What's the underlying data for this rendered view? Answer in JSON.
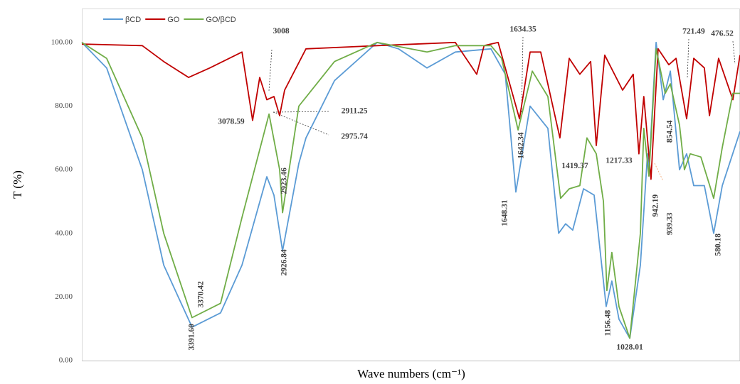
{
  "chart_data": {
    "type": "line",
    "x_label": "Wave numbers (cm⁻¹)",
    "y_label": "T (%)",
    "xlim": [
      4000,
      400
    ],
    "ylim": [
      0,
      110
    ],
    "yticks": [
      {
        "value": 0,
        "label": "0.00"
      },
      {
        "value": 20,
        "label": "20.00"
      },
      {
        "value": 40,
        "label": "40.00"
      },
      {
        "value": 60,
        "label": "60.00"
      },
      {
        "value": 80,
        "label": "80.00"
      },
      {
        "value": 100,
        "label": "100.00"
      }
    ],
    "legend": "top-left",
    "series": [
      {
        "name": "βCD",
        "color": "#5b9bd5",
        "x": [
          4000,
          3864,
          3669,
          3552,
          3397,
          3241,
          3124,
          2988,
          2949,
          2902,
          2813,
          2774,
          2618,
          2385,
          2268,
          2112,
          1957,
          1762,
          1684,
          1626,
          1548,
          1451,
          1392,
          1354,
          1315,
          1256,
          1198,
          1132,
          1101,
          1062,
          1003,
          945,
          906,
          898,
          859,
          820,
          781,
          731,
          692,
          653,
          595,
          544,
          497,
          400
        ],
        "values": [
          100,
          92,
          60,
          30,
          10.5,
          15,
          30,
          57.8,
          52,
          34.5,
          62,
          70,
          88,
          100,
          98,
          92,
          97,
          98,
          90,
          53,
          80,
          73,
          40,
          43,
          41,
          54,
          52,
          17,
          25,
          13,
          7,
          30,
          65,
          60,
          100,
          82,
          91,
          60,
          65,
          55,
          55,
          40,
          55,
          72
        ]
      },
      {
        "name": "GO",
        "color": "#c00000",
        "x": [
          4000,
          3669,
          3552,
          3416,
          3300,
          3124,
          3066,
          3027,
          2988,
          2949,
          2918,
          2891,
          2774,
          2385,
          1957,
          1840,
          1800,
          1723,
          1606,
          1548,
          1490,
          1385,
          1334,
          1276,
          1217,
          1186,
          1140,
          1042,
          984,
          953,
          926,
          887,
          848,
          789,
          750,
          692,
          653,
          595,
          567,
          517,
          439,
          400
        ],
        "values": [
          99.5,
          99,
          94,
          89,
          92,
          97,
          75.5,
          89,
          82,
          83,
          77,
          85,
          98,
          99,
          100,
          90,
          99,
          100,
          76,
          97,
          97,
          70,
          95,
          90,
          94,
          67.6,
          96,
          85,
          90,
          65,
          83,
          57,
          98,
          93,
          95,
          76,
          95,
          92,
          77,
          95,
          82,
          96
        ]
      },
      {
        "name": "GO/βCD",
        "color": "#70ad47",
        "x": [
          4000,
          3864,
          3669,
          3552,
          3397,
          3241,
          3124,
          2976,
          2918,
          2902,
          2813,
          2618,
          2385,
          2112,
          1957,
          1762,
          1704,
          1614,
          1536,
          1451,
          1381,
          1334,
          1276,
          1237,
          1186,
          1147,
          1128,
          1101,
          1062,
          1003,
          945,
          926,
          898,
          859,
          809,
          781,
          731,
          704,
          672,
          614,
          544,
          497,
          439,
          400
        ],
        "values": [
          100,
          95,
          70,
          40,
          13.5,
          18,
          45,
          77.5,
          60,
          46.5,
          80,
          94,
          100,
          97,
          99,
          99,
          95,
          72.5,
          91,
          83,
          51,
          54,
          55,
          70,
          65,
          50,
          22,
          34,
          17,
          7,
          40,
          73,
          58,
          98,
          84,
          87,
          74,
          60,
          65,
          64,
          51,
          67,
          84,
          84
        ]
      }
    ],
    "annotations": [
      {
        "text": "3008",
        "x": 2910,
        "y": 103.5,
        "vertical": false
      },
      {
        "text": "3078.59",
        "x": 3183,
        "y": 75,
        "vertical": false
      },
      {
        "text": "2911.25",
        "x": 2509,
        "y": 78.3,
        "vertical": false
      },
      {
        "text": "2975.74",
        "x": 2509,
        "y": 70.3,
        "vertical": false
      },
      {
        "text": "2923.46",
        "x": 2891,
        "y": 56.5,
        "vertical": true
      },
      {
        "text": "2926.84",
        "x": 2891,
        "y": 30.8,
        "vertical": true
      },
      {
        "text": "3370.42",
        "x": 3346,
        "y": 20.8,
        "vertical": true
      },
      {
        "text": "3391.60",
        "x": 3397,
        "y": 7.4,
        "vertical": true
      },
      {
        "text": "1634.35",
        "x": 1587,
        "y": 104,
        "vertical": false
      },
      {
        "text": "1642.34",
        "x": 1595,
        "y": 67.6,
        "vertical": true
      },
      {
        "text": "1648.31",
        "x": 1684,
        "y": 46.4,
        "vertical": true
      },
      {
        "text": "1419.37",
        "x": 1303,
        "y": 61,
        "vertical": false
      },
      {
        "text": "1217.33",
        "x": 1062,
        "y": 62.7,
        "vertical": false
      },
      {
        "text": "1156.48",
        "x": 1120,
        "y": 11.8,
        "vertical": true
      },
      {
        "text": "1028.01",
        "x": 1003,
        "y": 4,
        "vertical": false
      },
      {
        "text": "942.19",
        "x": 859,
        "y": 48.7,
        "vertical": true
      },
      {
        "text": "854.54",
        "x": 781,
        "y": 72,
        "vertical": true
      },
      {
        "text": "939.33",
        "x": 781,
        "y": 43,
        "vertical": true
      },
      {
        "text": "721.49",
        "x": 653,
        "y": 103.3,
        "vertical": false
      },
      {
        "text": "476.52",
        "x": 497,
        "y": 102.7,
        "vertical": false
      },
      {
        "text": "580.18",
        "x": 517,
        "y": 36.4,
        "vertical": true
      }
    ]
  }
}
